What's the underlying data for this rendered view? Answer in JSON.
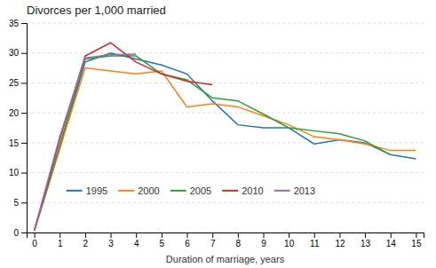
{
  "chart_data": {
    "type": "line",
    "title": "Divorces per 1,000 married",
    "x_label": "Duration of marriage, years",
    "x": [
      0,
      1,
      2,
      3,
      4,
      5,
      6,
      7,
      8,
      9,
      10,
      11,
      12,
      13,
      14,
      15
    ],
    "series": [
      {
        "name": "1995",
        "values": [
          0.3,
          14.0,
          28.5,
          30.0,
          29.0,
          28.0,
          26.5,
          22.0,
          18.0,
          17.5,
          17.5,
          14.8,
          15.5,
          15.0,
          13.0,
          12.3
        ]
      },
      {
        "name": "2000",
        "values": [
          0.3,
          14.0,
          27.5,
          27.0,
          26.5,
          27.0,
          21.0,
          21.5,
          21.0,
          19.5,
          18.0,
          16.0,
          15.5,
          14.8,
          13.7,
          13.7
        ]
      },
      {
        "name": "2005",
        "values": [
          0.3,
          14.5,
          29.0,
          29.5,
          29.5,
          26.5,
          25.5,
          22.5,
          22.0,
          19.8,
          17.5,
          17.0,
          16.5,
          15.3,
          13.0,
          null
        ]
      },
      {
        "name": "2010",
        "values": [
          0.3,
          15.5,
          29.5,
          31.7,
          28.5,
          26.5,
          25.3,
          24.7,
          null,
          null,
          null,
          null,
          null,
          null,
          null,
          null
        ]
      },
      {
        "name": "2013",
        "values": [
          0.3,
          16.0,
          29.2,
          29.7,
          29.8,
          null,
          null,
          null,
          null,
          null,
          null,
          null,
          null,
          null,
          null,
          null
        ]
      }
    ],
    "xlim": [
      -0.3,
      15.3
    ],
    "ylim": [
      0,
      35
    ],
    "xticks": [
      0,
      1,
      2,
      3,
      4,
      5,
      6,
      7,
      8,
      9,
      10,
      11,
      12,
      13,
      14,
      15
    ],
    "yticks": [
      0,
      5,
      10,
      15,
      20,
      25,
      30,
      35
    ],
    "grid": "y",
    "legend": "lower left"
  }
}
